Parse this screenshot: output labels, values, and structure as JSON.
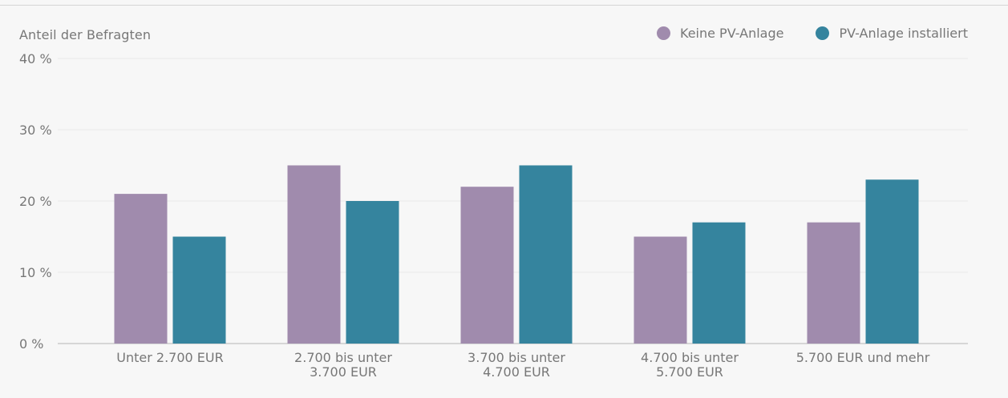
{
  "colors": {
    "keine_pv": "#a08bad",
    "pv_installiert": "#35849e",
    "grid": "#e8e8e8",
    "axis": "#b5b5b5",
    "background": "#f7f7f7"
  },
  "legend": {
    "items": [
      {
        "label": "Keine PV-Anlage",
        "color": "#a08bad"
      },
      {
        "label": "PV-Anlage installiert",
        "color": "#35849e"
      }
    ]
  },
  "chart_data": {
    "type": "bar",
    "title": "",
    "ylabel": "Anteil der Befragten",
    "xlabel": "",
    "categories": [
      [
        "Unter 2.700 EUR"
      ],
      [
        "2.700 bis unter",
        "3.700 EUR"
      ],
      [
        "3.700 bis unter",
        "4.700 EUR"
      ],
      [
        "4.700 bis unter",
        "5.700 EUR"
      ],
      [
        "5.700 EUR und mehr"
      ]
    ],
    "series": [
      {
        "name": "Keine PV-Anlage",
        "color": "#a08bad",
        "values": [
          21,
          25,
          22,
          15,
          17
        ]
      },
      {
        "name": "PV-Anlage installiert",
        "color": "#35849e",
        "values": [
          15,
          20,
          25,
          17,
          23
        ]
      }
    ],
    "ylim": [
      0,
      40
    ],
    "yticks": [
      0,
      10,
      20,
      30,
      40
    ],
    "ytick_labels": [
      "0 %",
      "10 %",
      "20 %",
      "30 %",
      "40 %"
    ],
    "grid": true,
    "legend_position": "top-right"
  }
}
